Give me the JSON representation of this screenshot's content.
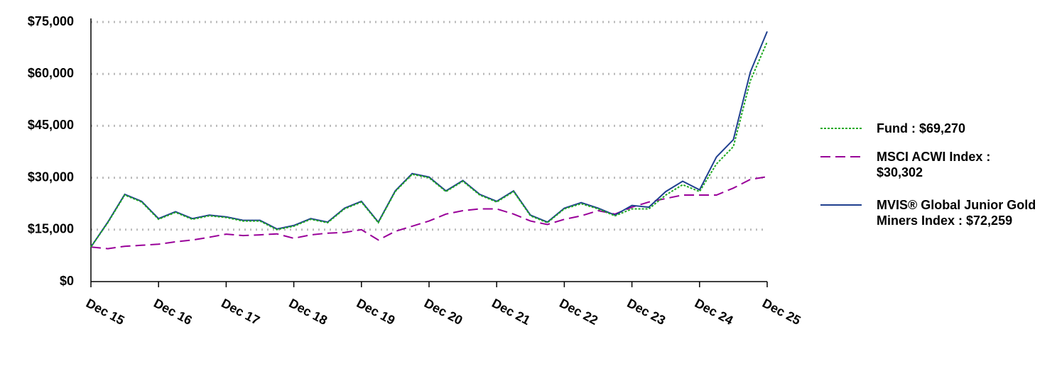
{
  "chart_data": {
    "type": "line",
    "categories": [
      "Dec 15",
      null,
      null,
      null,
      "Dec 16",
      null,
      null,
      null,
      "Dec 17",
      null,
      null,
      null,
      "Dec 18",
      null,
      null,
      null,
      "Dec 19",
      null,
      null,
      null,
      "Dec 20",
      null,
      null,
      null,
      "Dec 21",
      null,
      null,
      null,
      "Dec 22",
      null,
      null,
      null,
      "Dec 23",
      null,
      null,
      null,
      "Dec 24",
      null,
      null,
      null,
      "Dec 25"
    ],
    "series": [
      {
        "name": "MSCI ACWI Index : $30,302",
        "color": "#990099",
        "dash": "14,7",
        "values": [
          10000,
          9500,
          10200,
          10500,
          10800,
          11500,
          12000,
          12800,
          13700,
          13300,
          13500,
          13800,
          12500,
          13500,
          14000,
          14200,
          15000,
          12000,
          14500,
          16000,
          17500,
          19500,
          20500,
          21000,
          21000,
          19500,
          17500,
          16500,
          18000,
          19000,
          20500,
          19500,
          21500,
          23000,
          24000,
          25000,
          25000,
          25000,
          27000,
          29500,
          30302
        ]
      },
      {
        "name": "MVIS® Global Junior Gold Miners Index : $72,259",
        "color": "#1f3f8f",
        "dash": "none",
        "values": [
          10000,
          17200,
          25200,
          23200,
          18200,
          20200,
          18200,
          19200,
          18700,
          17700,
          17700,
          15200,
          16200,
          18200,
          17200,
          21200,
          23200,
          17200,
          26200,
          31200,
          30200,
          26200,
          29200,
          25200,
          23200,
          26200,
          19200,
          17200,
          21200,
          22800,
          21200,
          19200,
          22000,
          21500,
          26000,
          29000,
          26500,
          36000,
          41000,
          60500,
          72259
        ]
      },
      {
        "name": "Fund : $69,270",
        "color": "#22aa22",
        "dash": "3,2",
        "values": [
          10000,
          17000,
          25000,
          23000,
          18000,
          20000,
          18000,
          19000,
          18500,
          17500,
          17500,
          15000,
          16000,
          18000,
          17000,
          21000,
          23000,
          17000,
          26000,
          31000,
          30000,
          26000,
          29000,
          25000,
          23000,
          26000,
          19000,
          17000,
          21000,
          22500,
          21000,
          19000,
          21000,
          21000,
          25000,
          28000,
          26000,
          34000,
          39000,
          58000,
          69270
        ]
      }
    ],
    "ylim": [
      0,
      75000
    ],
    "yticks": [
      {
        "value": 0,
        "label": "$0"
      },
      {
        "value": 15000,
        "label": "$15,000"
      },
      {
        "value": 30000,
        "label": "$30,000"
      },
      {
        "value": 45000,
        "label": "$45,000"
      },
      {
        "value": 60000,
        "label": "$60,000"
      },
      {
        "value": 75000,
        "label": "$75,000"
      }
    ],
    "grid": true
  }
}
